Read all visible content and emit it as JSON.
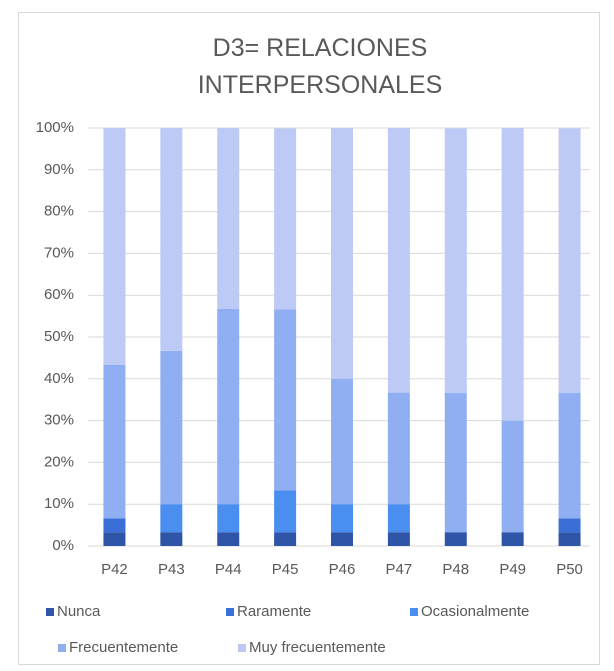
{
  "chart_data": {
    "type": "stacked_bar",
    "title": "D3= RELACIONES INTERPERSONALES",
    "categories": [
      "P42",
      "P43",
      "P44",
      "P45",
      "P46",
      "P47",
      "P48",
      "P49",
      "P50"
    ],
    "series": [
      {
        "name": "Nunca",
        "color": "#2f55a8",
        "values": [
          3.3,
          3.3,
          3.3,
          3.3,
          3.3,
          3.3,
          3.3,
          3.3,
          3.3
        ]
      },
      {
        "name": "Raramente",
        "color": "#3a6fd8",
        "values": [
          3.3,
          0,
          0,
          0,
          0,
          0,
          0,
          0,
          3.3
        ]
      },
      {
        "name": "Ocasionalmente",
        "color": "#4a8ef0",
        "values": [
          0,
          6.7,
          6.7,
          10,
          6.7,
          6.7,
          0,
          0,
          0
        ]
      },
      {
        "name": "Frecuentemente",
        "color": "#90aff2",
        "values": [
          36.7,
          36.7,
          46.7,
          43.3,
          30,
          26.7,
          33.3,
          26.7,
          30
        ]
      },
      {
        "name": "Muy frecuentemente",
        "color": "#bdcaf5",
        "values": [
          56.7,
          53.3,
          43.3,
          43.3,
          60,
          63.3,
          63.3,
          70,
          63.3
        ]
      }
    ],
    "ylim": [
      0,
      100
    ],
    "yticks": [
      {
        "value": 0,
        "label": "0%"
      },
      {
        "value": 10,
        "label": "10%"
      },
      {
        "value": 20,
        "label": "20%"
      },
      {
        "value": 30,
        "label": "30%"
      },
      {
        "value": 40,
        "label": "40%"
      },
      {
        "value": 50,
        "label": "50%"
      },
      {
        "value": 60,
        "label": "60%"
      },
      {
        "value": 70,
        "label": "70%"
      },
      {
        "value": 80,
        "label": "80%"
      },
      {
        "value": 90,
        "label": "90%"
      },
      {
        "value": 100,
        "label": "100%"
      }
    ],
    "grid": true
  }
}
